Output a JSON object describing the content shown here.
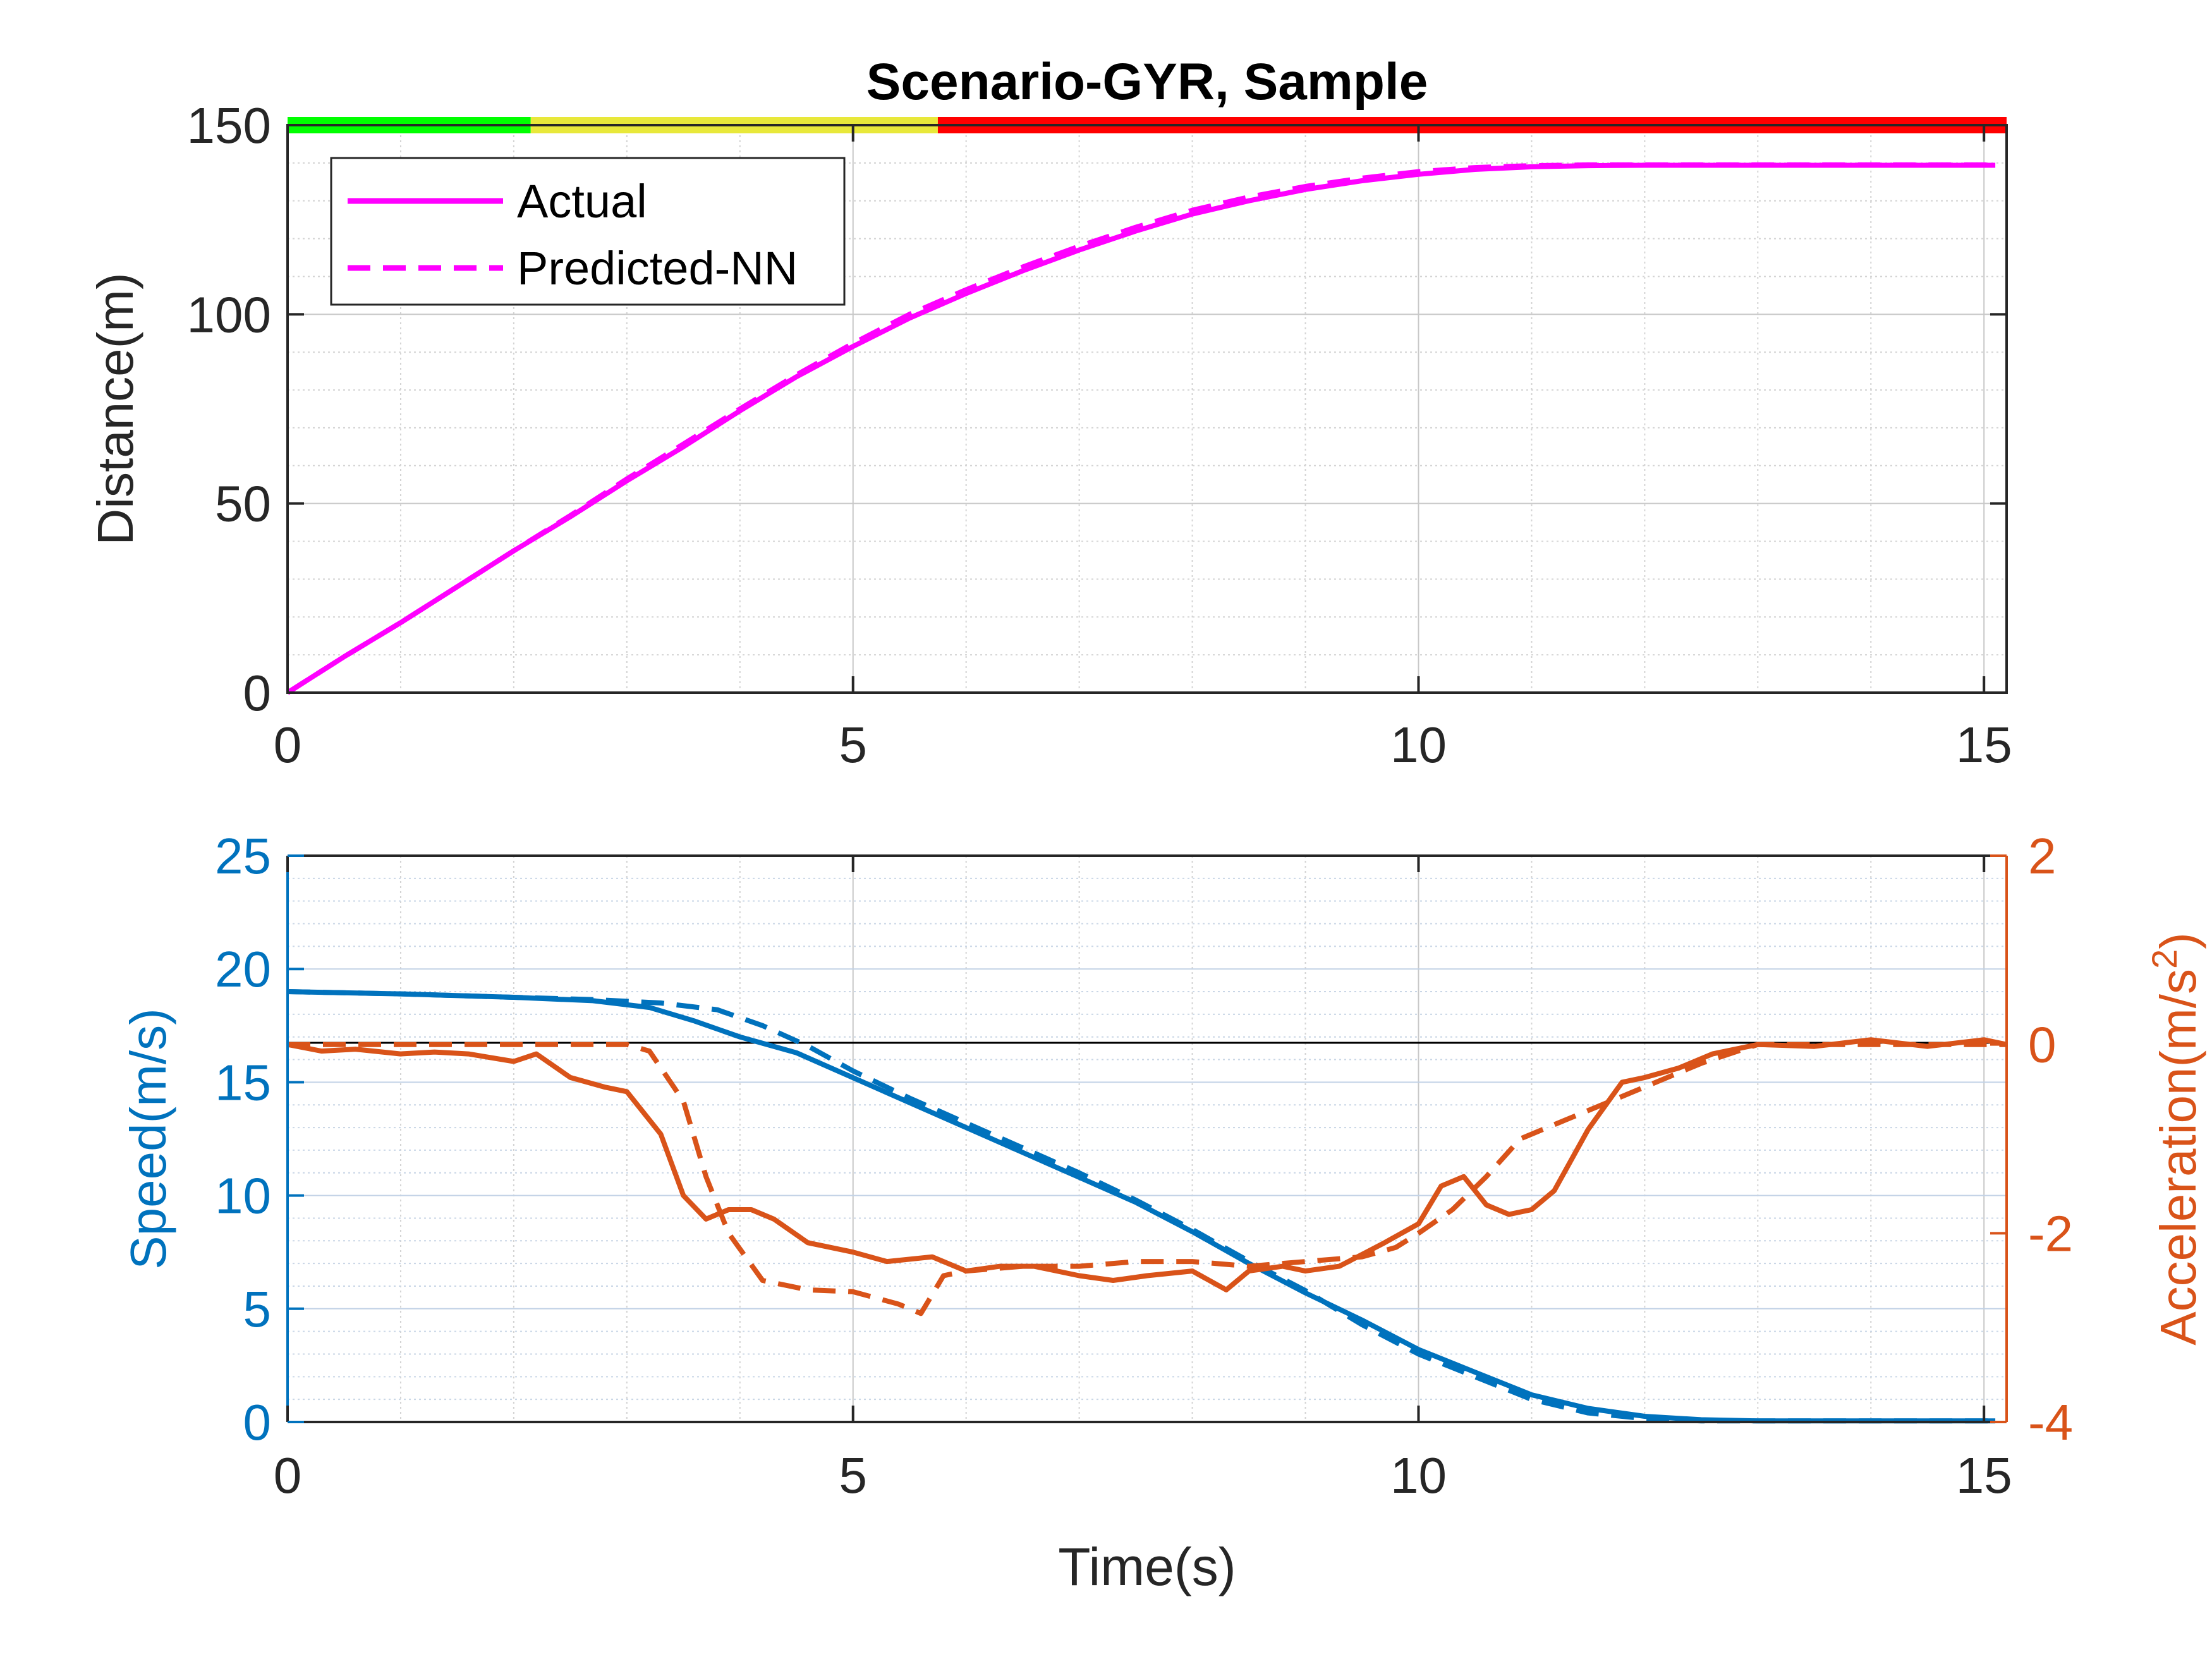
{
  "chart_data": [
    {
      "type": "line",
      "title": "Scenario-GYR, Sample",
      "xlabel": "",
      "ylabel": "Distance(m)",
      "xlim": [
        0,
        15.2
      ],
      "ylim": [
        0,
        150
      ],
      "xticks": [
        "0",
        "5",
        "10",
        "15"
      ],
      "yticks": [
        "0",
        "50",
        "100",
        "150"
      ],
      "grid": "major and minor",
      "legend_position": "top-left",
      "phase_bar": [
        {
          "from": 0,
          "to": 2.15,
          "color": "#00ff00"
        },
        {
          "from": 2.15,
          "to": 5.75,
          "color": "#e8e83a"
        },
        {
          "from": 5.75,
          "to": 15.2,
          "color": "#ff0000"
        }
      ],
      "series": [
        {
          "name": "Actual",
          "style": "solid",
          "color": "#ff00ff",
          "x": [
            0,
            0.5,
            1,
            1.5,
            2,
            2.5,
            3,
            3.5,
            4,
            4.5,
            5,
            5.5,
            6,
            6.5,
            7,
            7.5,
            8,
            8.5,
            9,
            9.5,
            10,
            10.5,
            11,
            11.5,
            12,
            13,
            14,
            15.1
          ],
          "y": [
            0,
            9.5,
            18.5,
            28,
            37.5,
            46.5,
            56,
            65,
            74.5,
            83.5,
            91.5,
            99,
            105.5,
            111.5,
            117,
            122,
            126.5,
            130,
            133,
            135.3,
            137,
            138.3,
            139,
            139.3,
            139.4,
            139.4,
            139.4,
            139.4
          ]
        },
        {
          "name": "Predicted-NN",
          "style": "dashed",
          "color": "#ff00ff",
          "x": [
            0,
            0.5,
            1,
            1.5,
            2,
            2.5,
            3,
            3.5,
            4,
            4.5,
            5,
            5.5,
            6,
            6.5,
            7,
            7.5,
            8,
            8.5,
            9,
            9.5,
            10,
            10.5,
            11,
            11.5,
            12,
            13,
            14,
            15.1
          ],
          "y": [
            0,
            9.5,
            18.5,
            28,
            37.5,
            46.8,
            56.5,
            65.7,
            75,
            84,
            92.3,
            100,
            106.5,
            112.5,
            118,
            123,
            127.5,
            131,
            133.8,
            136,
            137.7,
            138.8,
            139.3,
            139.5,
            139.5,
            139.5,
            139.5,
            139.5
          ]
        }
      ]
    },
    {
      "type": "line",
      "title": "",
      "xlabel": "Time(s)",
      "ylabel": "Speed(m/s)",
      "ylabel_right": "Acceleration(m/s",
      "ylabel_right_superscript": "2",
      "ylabel_right_close": ")",
      "xlim": [
        0,
        15.2
      ],
      "ylim": [
        0,
        25
      ],
      "ylim_right": [
        -4,
        2
      ],
      "xticks": [
        "0",
        "5",
        "10",
        "15"
      ],
      "yticks": [
        "0",
        "5",
        "10",
        "15",
        "20",
        "25"
      ],
      "yticks_right": [
        "-4",
        "-2",
        "0",
        "2"
      ],
      "grid": "major and minor",
      "colors": {
        "speed": "#0072bd",
        "acceleration": "#d95319"
      },
      "series": [
        {
          "name": "Speed actual",
          "axis": "left",
          "style": "solid",
          "color": "#0072bd",
          "x": [
            0,
            1,
            2,
            2.7,
            3.2,
            3.6,
            4,
            4.5,
            5,
            5.5,
            6,
            6.5,
            7,
            7.5,
            8,
            8.5,
            9,
            9.5,
            10,
            10.5,
            11,
            11.5,
            12,
            12.5,
            13,
            14,
            15.1
          ],
          "y": [
            19,
            18.9,
            18.75,
            18.6,
            18.3,
            17.7,
            17,
            16.3,
            15.2,
            14.1,
            13,
            11.9,
            10.8,
            9.7,
            8.4,
            7,
            5.7,
            4.5,
            3.2,
            2.2,
            1.2,
            0.6,
            0.25,
            0.1,
            0.05,
            0.05,
            0.05
          ]
        },
        {
          "name": "Speed predicted",
          "axis": "left",
          "style": "dashed",
          "color": "#0072bd",
          "x": [
            0,
            1,
            2,
            2.7,
            3.3,
            3.8,
            4.2,
            4.6,
            5,
            5.5,
            6,
            6.5,
            7,
            7.5,
            8,
            8.5,
            9,
            9.5,
            10,
            10.5,
            11,
            11.5,
            12,
            12.5,
            13,
            14,
            15.1
          ],
          "y": [
            19,
            18.9,
            18.75,
            18.65,
            18.5,
            18.2,
            17.5,
            16.6,
            15.5,
            14.3,
            13.2,
            12.1,
            11,
            9.8,
            8.5,
            7.1,
            5.8,
            4.3,
            3,
            2,
            1,
            0.4,
            0.15,
            0.05,
            0.05,
            0.05,
            0.05
          ]
        },
        {
          "name": "Acceleration actual",
          "axis": "right",
          "style": "solid",
          "color": "#d95319",
          "x": [
            0,
            0.3,
            0.6,
            1,
            1.3,
            1.6,
            2,
            2.2,
            2.5,
            2.8,
            3,
            3.3,
            3.5,
            3.7,
            3.9,
            4.1,
            4.3,
            4.6,
            5,
            5.3,
            5.7,
            6,
            6.3,
            6.6,
            7,
            7.3,
            7.6,
            8,
            8.3,
            8.5,
            8.8,
            9,
            9.3,
            9.7,
            10,
            10.2,
            10.4,
            10.6,
            10.8,
            11,
            11.2,
            11.5,
            11.8,
            12,
            12.3,
            12.6,
            13,
            13.5,
            14,
            14.5,
            15,
            15.2
          ],
          "y": [
            0,
            -0.07,
            -0.05,
            -0.1,
            -0.08,
            -0.1,
            -0.18,
            -0.1,
            -0.35,
            -0.45,
            -0.5,
            -0.95,
            -1.6,
            -1.85,
            -1.75,
            -1.75,
            -1.85,
            -2.1,
            -2.2,
            -2.3,
            -2.25,
            -2.4,
            -2.35,
            -2.35,
            -2.45,
            -2.5,
            -2.45,
            -2.4,
            -2.6,
            -2.4,
            -2.35,
            -2.4,
            -2.35,
            -2.1,
            -1.9,
            -1.5,
            -1.4,
            -1.7,
            -1.8,
            -1.75,
            -1.55,
            -0.9,
            -0.4,
            -0.35,
            -0.25,
            -0.1,
            0,
            -0.02,
            0.05,
            -0.02,
            0.05,
            0
          ]
        },
        {
          "name": "Acceleration predicted",
          "axis": "right",
          "style": "dashed",
          "color": "#d95319",
          "x": [
            0,
            1,
            2,
            2.5,
            3,
            3.2,
            3.5,
            3.7,
            3.9,
            4.2,
            4.6,
            5,
            5.4,
            5.6,
            5.8,
            6,
            6.5,
            7,
            7.5,
            8,
            8.5,
            9,
            9.5,
            9.8,
            10,
            10.3,
            10.6,
            10.9,
            11.3,
            11.7,
            12,
            12.5,
            13,
            14,
            15.2
          ],
          "y": [
            0,
            0,
            0,
            0,
            0,
            -0.07,
            -0.6,
            -1.4,
            -2,
            -2.5,
            -2.6,
            -2.62,
            -2.75,
            -2.85,
            -2.45,
            -2.4,
            -2.35,
            -2.35,
            -2.3,
            -2.3,
            -2.35,
            -2.3,
            -2.25,
            -2.15,
            -2,
            -1.75,
            -1.4,
            -1,
            -0.8,
            -0.6,
            -0.45,
            -0.2,
            0,
            0,
            0
          ]
        }
      ]
    }
  ],
  "legend": {
    "actual": "Actual",
    "predicted": "Predicted-NN"
  }
}
